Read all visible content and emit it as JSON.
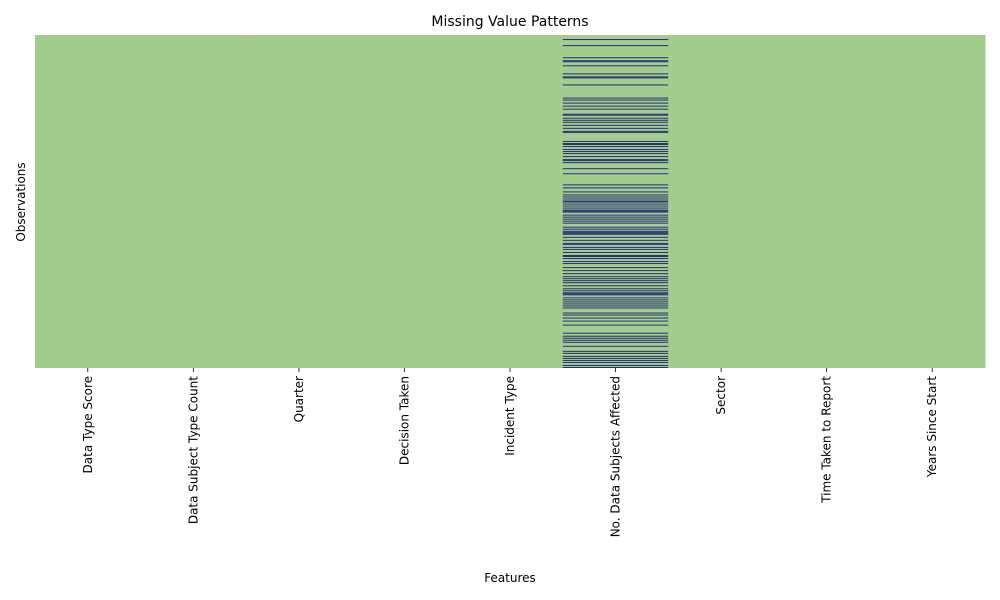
{
  "chart_data": {
    "type": "heatmap",
    "title": "Missing Value Patterns",
    "xlabel": "Features",
    "ylabel": "Observations",
    "categories": [
      "Data Type Score",
      "Data Subject Type Count",
      "Quarter",
      "Decision Taken",
      "Incident Type",
      "No. Data Subjects Affected",
      "Sector",
      "Time Taken to Report",
      "Years Since Start"
    ],
    "row_count": 330,
    "colors": {
      "present": "#a3cc8f",
      "missing": "#243273"
    },
    "missing_rows": {
      "No. Data Subjects Affected": [
        4,
        10,
        22,
        25,
        26,
        30,
        38,
        41,
        42,
        49,
        62,
        64,
        67,
        70,
        73,
        78,
        79,
        82,
        84,
        86,
        89,
        92,
        95,
        96,
        105,
        107,
        108,
        110,
        113,
        115,
        117,
        120,
        123,
        124,
        126,
        132,
        137,
        148,
        151,
        155,
        158,
        160,
        162,
        164,
        165,
        167,
        169,
        171,
        173,
        174,
        175,
        178,
        180,
        182,
        184,
        186,
        190,
        192,
        194,
        195,
        196,
        197,
        200,
        203,
        206,
        207,
        210,
        212,
        215,
        218,
        219,
        221,
        224,
        226,
        230,
        233,
        236,
        239,
        241,
        243,
        245,
        248,
        251,
        253,
        255,
        256,
        257,
        260,
        262,
        264,
        266,
        268,
        270,
        275,
        277,
        280,
        283,
        287,
        295,
        298,
        300,
        302,
        304,
        308,
        313,
        315,
        318,
        320,
        322,
        324,
        327,
        329
      ]
    }
  }
}
